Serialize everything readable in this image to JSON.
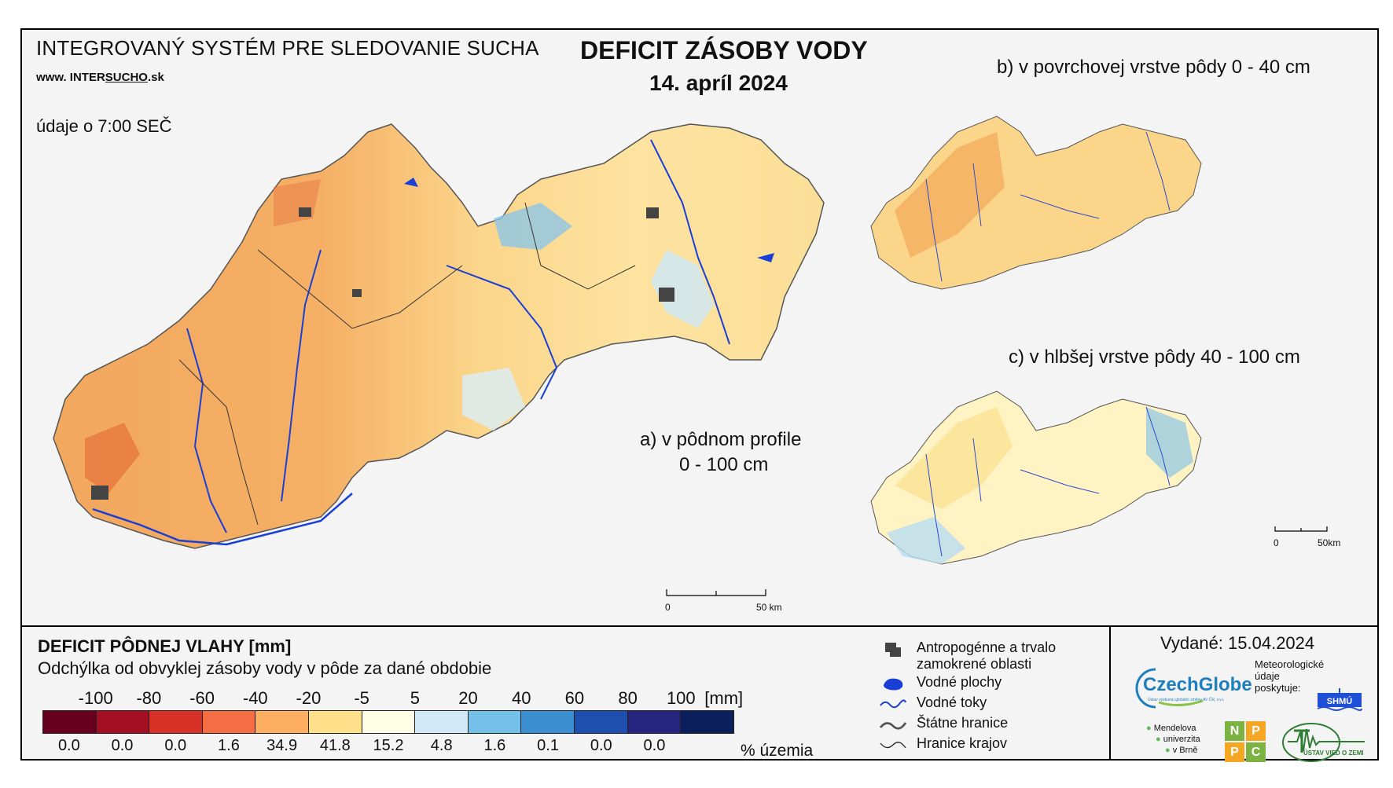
{
  "header": {
    "system_title": "INTEGROVANÝ SYSTÉM PRE SLEDOVANIE SUCHA",
    "website_prefix": "www. INTER",
    "website_highlight": "SUCHO",
    "website_suffix": ".sk",
    "time_note": "údaje o 7:00 SEČ",
    "main_title": "DEFICIT ZÁSOBY VODY",
    "date": "14. apríl 2024"
  },
  "maps": {
    "a_line1": "a) v pôdnom profile",
    "a_line2": "0 - 100 cm",
    "b_label": "b) v povrchovej vrstve pôdy 0 - 40 cm",
    "c_label": "c) v hlbšej vrstve pôdy 40 - 100 cm",
    "scale_main_start": "0",
    "scale_main_end": "50 km",
    "scale_small_start": "0",
    "scale_small_end": "50km"
  },
  "legend": {
    "title": "DEFICIT PÔDNEJ VLAHY [mm]",
    "subtitle": "Odchýlka od obvyklej zásoby vody v pôde za dané obdobie",
    "ticks": [
      "-100",
      "-80",
      "-60",
      "-40",
      "-20",
      "-5",
      "5",
      "20",
      "40",
      "60",
      "80",
      "100"
    ],
    "tick_unit": "[mm]",
    "colors": [
      "#67001f",
      "#a50f24",
      "#d73027",
      "#f46d43",
      "#fdae61",
      "#fee08b",
      "#ffffe5",
      "#d1e9f7",
      "#74c0e8",
      "#3b8fd0",
      "#1f4fae",
      "#252580",
      "#0b1f5c"
    ],
    "percentages": [
      "0.0",
      "0.0",
      "0.0",
      "1.6",
      "34.9",
      "41.8",
      "15.2",
      "4.8",
      "1.6",
      "0.1",
      "0.0",
      "0.0"
    ],
    "percent_unit": "% územia"
  },
  "symbols": {
    "anthropogenic_line1": "Antropogénne a trvalo",
    "anthropogenic_line2": "zamokrené oblasti",
    "water_bodies": "Vodné plochy",
    "rivers": "Vodné toky",
    "state_border": "Štátne hranice",
    "region_border": "Hranice krajov"
  },
  "footer": {
    "issued": "Vydané: 15.04.2024",
    "czechglobe": "CzechGlobe",
    "czechglobe_sub": "Ústav výzkumu globální změny AV ČR, v.v.i.",
    "meteo_line1": "Meteorologické",
    "meteo_line2": "údaje",
    "meteo_line3": "poskytuje:",
    "shmu": "SHMÚ",
    "mendel_line1": "Mendelova",
    "mendel_line2": "univerzita",
    "mendel_line3": "v Brně",
    "nppc": [
      "N",
      "P",
      "P",
      "C"
    ],
    "uvz": "ÚSTAV VIED O ZEMI"
  }
}
